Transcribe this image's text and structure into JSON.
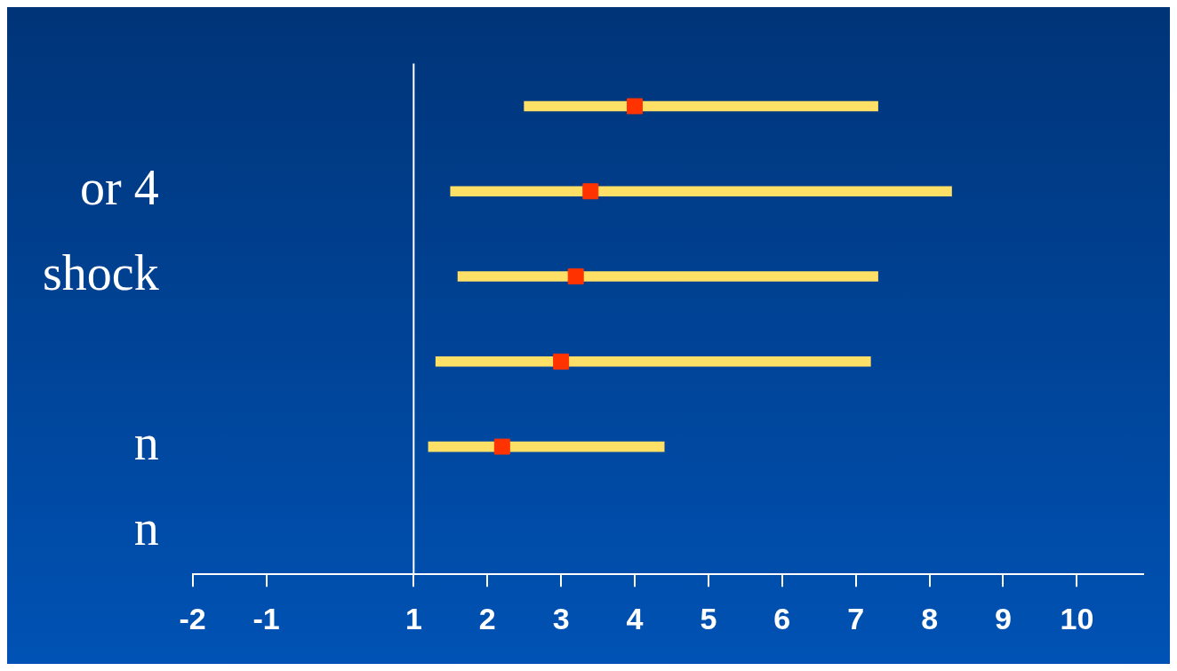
{
  "chart_data": {
    "type": "bar",
    "orientation": "horizontal",
    "categories": [
      null,
      "or 4",
      "shock",
      null,
      "n",
      "n"
    ],
    "series": [
      {
        "type": "bar",
        "color": "#ffe066",
        "base": [
          2.5,
          1.5,
          1.6,
          1.3,
          1.2,
          null
        ],
        "values": [
          4.8,
          6.8,
          5.7,
          5.9,
          3.2,
          null
        ]
      },
      {
        "type": "scatter",
        "color": "#ff3300",
        "marker": "square",
        "values": [
          4.0,
          3.4,
          3.2,
          3.0,
          2.2,
          null
        ]
      }
    ],
    "xlim": [
      -2,
      10.9
    ],
    "xticks": [
      -2,
      -1,
      1,
      2,
      3,
      4,
      5,
      6,
      7,
      8,
      9,
      10
    ],
    "ref_lines": [
      {
        "axis": "x",
        "value": 1,
        "color": "#ffffff"
      }
    ],
    "grid": false,
    "legend": false
  }
}
